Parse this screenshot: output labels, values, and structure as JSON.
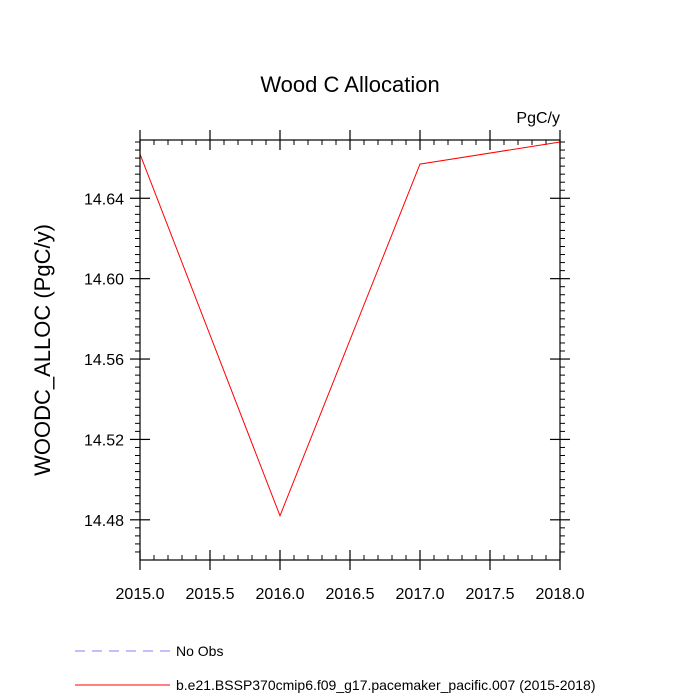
{
  "chart_data": {
    "type": "line",
    "title": "Wood C Allocation",
    "units_label": "PgC/y",
    "ylabel": "WOODC_ALLOC  (PgC/y)",
    "xlabel": "",
    "xlim": [
      2015.0,
      2018.0
    ],
    "ylim": [
      14.46,
      14.669
    ],
    "x_ticks": [
      2015.0,
      2015.5,
      2016.0,
      2016.5,
      2017.0,
      2017.5,
      2018.0
    ],
    "x_tick_labels": [
      "2015.0",
      "2015.5",
      "2016.0",
      "2016.5",
      "2017.0",
      "2017.5",
      "2018.0"
    ],
    "x_minor_ticks": [
      2015.1,
      2015.2,
      2015.3,
      2015.4,
      2015.6,
      2015.7,
      2015.8,
      2015.9,
      2016.1,
      2016.2,
      2016.3,
      2016.4,
      2016.6,
      2016.7,
      2016.8,
      2016.9,
      2017.1,
      2017.2,
      2017.3,
      2017.4,
      2017.6,
      2017.7,
      2017.8,
      2017.9
    ],
    "y_ticks": [
      14.48,
      14.52,
      14.56,
      14.6,
      14.64
    ],
    "y_tick_labels": [
      "14.48",
      "14.52",
      "14.56",
      "14.60",
      "14.64"
    ],
    "y_minor_ticks": [
      14.464,
      14.468,
      14.472,
      14.476,
      14.484,
      14.488,
      14.492,
      14.496,
      14.5,
      14.504,
      14.508,
      14.512,
      14.516,
      14.524,
      14.528,
      14.532,
      14.536,
      14.54,
      14.544,
      14.548,
      14.552,
      14.556,
      14.564,
      14.568,
      14.572,
      14.576,
      14.58,
      14.584,
      14.588,
      14.592,
      14.596,
      14.604,
      14.608,
      14.612,
      14.616,
      14.62,
      14.624,
      14.628,
      14.632,
      14.636,
      14.644,
      14.648,
      14.652,
      14.656,
      14.66,
      14.664,
      14.668
    ],
    "grid": false,
    "legend_position": "bottom",
    "series": [
      {
        "name": "No Obs",
        "color": "#8080ff",
        "dash": true,
        "x": [],
        "y": []
      },
      {
        "name": "b.e21.BSSP370cmip6.f09_g17.pacemaker_pacific.007 (2015-2018)",
        "color": "#ff0000",
        "dash": false,
        "x": [
          2015.0,
          2016.0,
          2017.0,
          2018.0
        ],
        "y": [
          14.662,
          14.482,
          14.657,
          14.668
        ]
      }
    ]
  }
}
